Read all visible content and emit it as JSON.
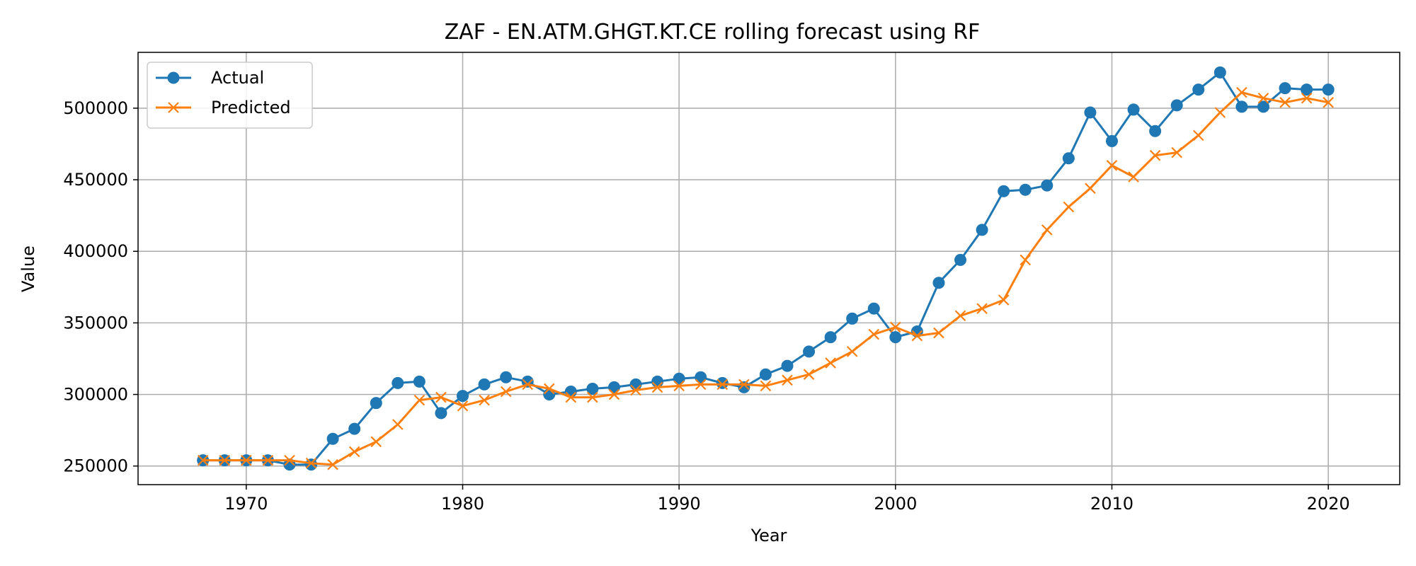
{
  "chart_data": {
    "type": "line",
    "title": "ZAF - EN.ATM.GHGT.KT.CE rolling forecast using RF",
    "xlabel": "Year",
    "ylabel": "Value",
    "xlim": [
      1965,
      2023.3
    ],
    "ylim": [
      237000,
      539000
    ],
    "xticks": [
      1970,
      1980,
      1990,
      2000,
      2010,
      2020
    ],
    "yticks": [
      250000,
      300000,
      350000,
      400000,
      450000,
      500000
    ],
    "grid": true,
    "legend_position": "top-left",
    "x": [
      1968,
      1969,
      1970,
      1971,
      1972,
      1973,
      1974,
      1975,
      1976,
      1977,
      1978,
      1979,
      1980,
      1981,
      1982,
      1983,
      1984,
      1985,
      1986,
      1987,
      1988,
      1989,
      1990,
      1991,
      1992,
      1993,
      1994,
      1995,
      1996,
      1997,
      1998,
      1999,
      2000,
      2001,
      2002,
      2003,
      2004,
      2005,
      2006,
      2007,
      2008,
      2009,
      2010,
      2011,
      2012,
      2013,
      2014,
      2015,
      2016,
      2017,
      2018,
      2019,
      2020
    ],
    "series": [
      {
        "name": "Actual",
        "color": "#1f77b4",
        "marker": "circle",
        "values": [
          254000,
          254000,
          254000,
          254000,
          251000,
          251000,
          269000,
          276000,
          294000,
          308000,
          309000,
          287000,
          299000,
          307000,
          312000,
          309000,
          300000,
          302000,
          304000,
          305000,
          307000,
          309000,
          311000,
          312000,
          308000,
          305000,
          314000,
          320000,
          330000,
          340000,
          353000,
          360000,
          340000,
          344000,
          378000,
          394000,
          415000,
          442000,
          443000,
          446000,
          465000,
          497000,
          477000,
          499000,
          484000,
          502000,
          513000,
          525000,
          501000,
          501000,
          514000,
          513000,
          513000
        ]
      },
      {
        "name": "Predicted",
        "color": "#ff7f0e",
        "marker": "x",
        "values": [
          254000,
          254000,
          254000,
          254000,
          254000,
          252000,
          251000,
          260000,
          267000,
          279000,
          296000,
          298000,
          292000,
          296000,
          302000,
          307000,
          304000,
          298000,
          298000,
          300000,
          303000,
          305000,
          306000,
          307000,
          307000,
          307000,
          306000,
          310000,
          314000,
          322000,
          330000,
          342000,
          347000,
          341000,
          343000,
          355000,
          360000,
          366000,
          394000,
          415000,
          431000,
          444000,
          460000,
          452000,
          467000,
          469000,
          481000,
          497000,
          511000,
          507000,
          504000,
          507000,
          504000
        ]
      }
    ]
  }
}
